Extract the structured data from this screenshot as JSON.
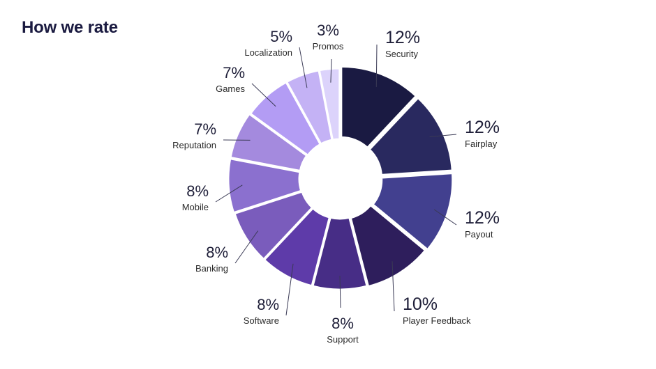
{
  "page": {
    "title": "How we rate"
  },
  "chart_data": {
    "type": "pie",
    "variant": "donut",
    "title": "How we rate",
    "value_suffix": "%",
    "slices": [
      {
        "label": "Security",
        "value": 12,
        "color": "#1a1a42"
      },
      {
        "label": "Fairplay",
        "value": 12,
        "color": "#29295f"
      },
      {
        "label": "Payout",
        "value": 12,
        "color": "#42408f"
      },
      {
        "label": "Player Feedback",
        "value": 10,
        "color": "#2e1e5c"
      },
      {
        "label": "Support",
        "value": 8,
        "color": "#472d86"
      },
      {
        "label": "Software",
        "value": 8,
        "color": "#5e3ba9"
      },
      {
        "label": "Banking",
        "value": 8,
        "color": "#7a5cbc"
      },
      {
        "label": "Mobile",
        "value": 8,
        "color": "#8b70cf"
      },
      {
        "label": "Reputation",
        "value": 7,
        "color": "#a48ade"
      },
      {
        "label": "Games",
        "value": 7,
        "color": "#b39cf4"
      },
      {
        "label": "Localization",
        "value": 5,
        "color": "#c4b2f5"
      },
      {
        "label": "Promos",
        "value": 3,
        "color": "#dcd3fb"
      }
    ]
  }
}
